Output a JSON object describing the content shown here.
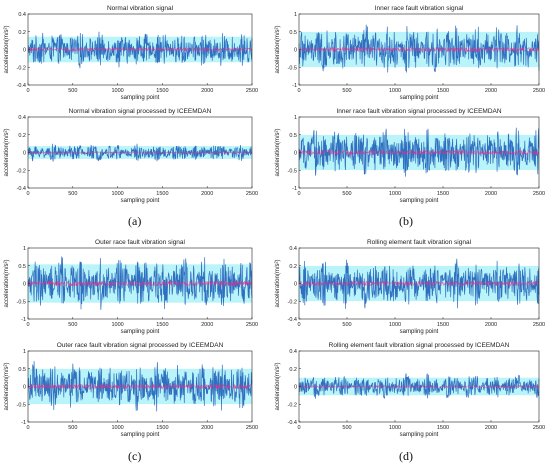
{
  "figure": {
    "panel_labels": [
      "(a)",
      "(b)",
      "(c)",
      "(d)"
    ],
    "colors": {
      "signal": "#2f6fc0",
      "residual_band": "#33e0ee",
      "zero_line": "#e0308a",
      "axis": "#222222"
    }
  },
  "chart_data": [
    {
      "id": "a-top",
      "type": "line",
      "title": "Normal vibration signal",
      "xlabel": "sampling point",
      "ylabel": "acceleration(m/s²)",
      "xlim": [
        0,
        2500
      ],
      "ylim": [
        -0.4,
        0.4
      ],
      "xticks": [
        0,
        500,
        1000,
        1500,
        2000,
        2500
      ],
      "yticks": [
        -0.4,
        -0.2,
        0,
        0.2,
        0.4
      ],
      "yticklabels": [
        "-0.4",
        "-0.2",
        "0",
        "0.2",
        "0.4"
      ],
      "series": [
        {
          "amplitude": 0.16,
          "n_points": 2500
        }
      ]
    },
    {
      "id": "a-bottom",
      "type": "line",
      "title": "Normal vibration signal processed by ICEEMDAN",
      "xlabel": "sampling point",
      "ylabel": "acceleration(m/s²)",
      "xlim": [
        0,
        2500
      ],
      "ylim": [
        -0.4,
        0.4
      ],
      "xticks": [
        0,
        500,
        1000,
        1500,
        2000,
        2500
      ],
      "yticks": [
        -0.4,
        -0.2,
        0,
        0.2,
        0.4
      ],
      "yticklabels": [
        "-0.4",
        "-0.2",
        "0",
        "0.2",
        "0.4"
      ],
      "series": [
        {
          "amplitude": 0.08,
          "n_points": 2500
        }
      ]
    },
    {
      "id": "b-top",
      "type": "line",
      "title": "Inner race fault vibration signal",
      "xlabel": "sampling point",
      "ylabel": "acceleration(m/s²)",
      "xlim": [
        0,
        2500
      ],
      "ylim": [
        -1,
        1
      ],
      "xticks": [
        0,
        500,
        1000,
        1500,
        2000,
        2500
      ],
      "yticks": [
        -1,
        -0.5,
        0,
        0.5,
        1
      ],
      "yticklabels": [
        "-1",
        "-0.5",
        "0",
        "0.5",
        "1"
      ],
      "series": [
        {
          "amplitude": 0.55,
          "n_points": 2500
        }
      ]
    },
    {
      "id": "b-bottom",
      "type": "line",
      "title": "Inner race fault vibration signal processed by ICEEMDAN",
      "xlabel": "sampling point",
      "ylabel": "acceleration(m/s²)",
      "xlim": [
        0,
        2500
      ],
      "ylim": [
        -1,
        1
      ],
      "xticks": [
        0,
        500,
        1000,
        1500,
        2000,
        2500
      ],
      "yticks": [
        -1,
        -0.5,
        0,
        0.5,
        1
      ],
      "yticklabels": [
        "-1",
        "-0.5",
        "0",
        "0.5",
        "1"
      ],
      "series": [
        {
          "amplitude": 0.55,
          "n_points": 2500
        }
      ]
    },
    {
      "id": "c-top",
      "type": "line",
      "title": "Outer race fault vibration signal",
      "xlabel": "sampling point",
      "ylabel": "acceleration(m/s²)",
      "xlim": [
        0,
        2500
      ],
      "ylim": [
        -1,
        1
      ],
      "xticks": [
        0,
        500,
        1000,
        1500,
        2000,
        2500
      ],
      "yticks": [
        -1,
        -0.5,
        0,
        0.5,
        1
      ],
      "yticklabels": [
        "-1",
        "-0.5",
        "0",
        "0.5",
        "1"
      ],
      "series": [
        {
          "amplitude": 0.6,
          "n_points": 2500
        }
      ]
    },
    {
      "id": "c-bottom",
      "type": "line",
      "title": "Outer race fault vibration signal processed by ICEEMDAN",
      "xlabel": "sampling point",
      "ylabel": "acceleration(m/s²)",
      "xlim": [
        0,
        2500
      ],
      "ylim": [
        -1,
        1
      ],
      "xticks": [
        0,
        500,
        1000,
        1500,
        2000,
        2500
      ],
      "yticks": [
        -1,
        -0.5,
        0,
        0.5,
        1
      ],
      "yticklabels": [
        "-1",
        "-0.5",
        "0",
        "0.5",
        "1"
      ],
      "series": [
        {
          "amplitude": 0.55,
          "n_points": 2500
        }
      ]
    },
    {
      "id": "d-top",
      "type": "line",
      "title": "Rolling element fault vibration signal",
      "xlabel": "sampling point",
      "ylabel": "acceleration(m/s²)",
      "xlim": [
        0,
        2500
      ],
      "ylim": [
        -0.4,
        0.4
      ],
      "xticks": [
        0,
        500,
        1000,
        1500,
        2000,
        2500
      ],
      "yticks": [
        -0.4,
        -0.2,
        0,
        0.2,
        0.4
      ],
      "yticklabels": [
        "-0.4",
        "-0.2",
        "0",
        "0.2",
        "0.4"
      ],
      "series": [
        {
          "amplitude": 0.22,
          "n_points": 2500
        }
      ]
    },
    {
      "id": "d-bottom",
      "type": "line",
      "title": "Rolling element fault vibration signal processed by ICEEMDAN",
      "xlabel": "sampling point",
      "ylabel": "acceleration(m/s²)",
      "xlim": [
        0,
        2500
      ],
      "ylim": [
        -0.4,
        0.4
      ],
      "xticks": [
        0,
        500,
        1000,
        1500,
        2000,
        2500
      ],
      "yticks": [
        -0.4,
        -0.2,
        0,
        0.2,
        0.4
      ],
      "yticklabels": [
        "-0.4",
        "-0.2",
        "0",
        "0.2",
        "0.4"
      ],
      "series": [
        {
          "amplitude": 0.11,
          "n_points": 2500
        }
      ]
    }
  ]
}
